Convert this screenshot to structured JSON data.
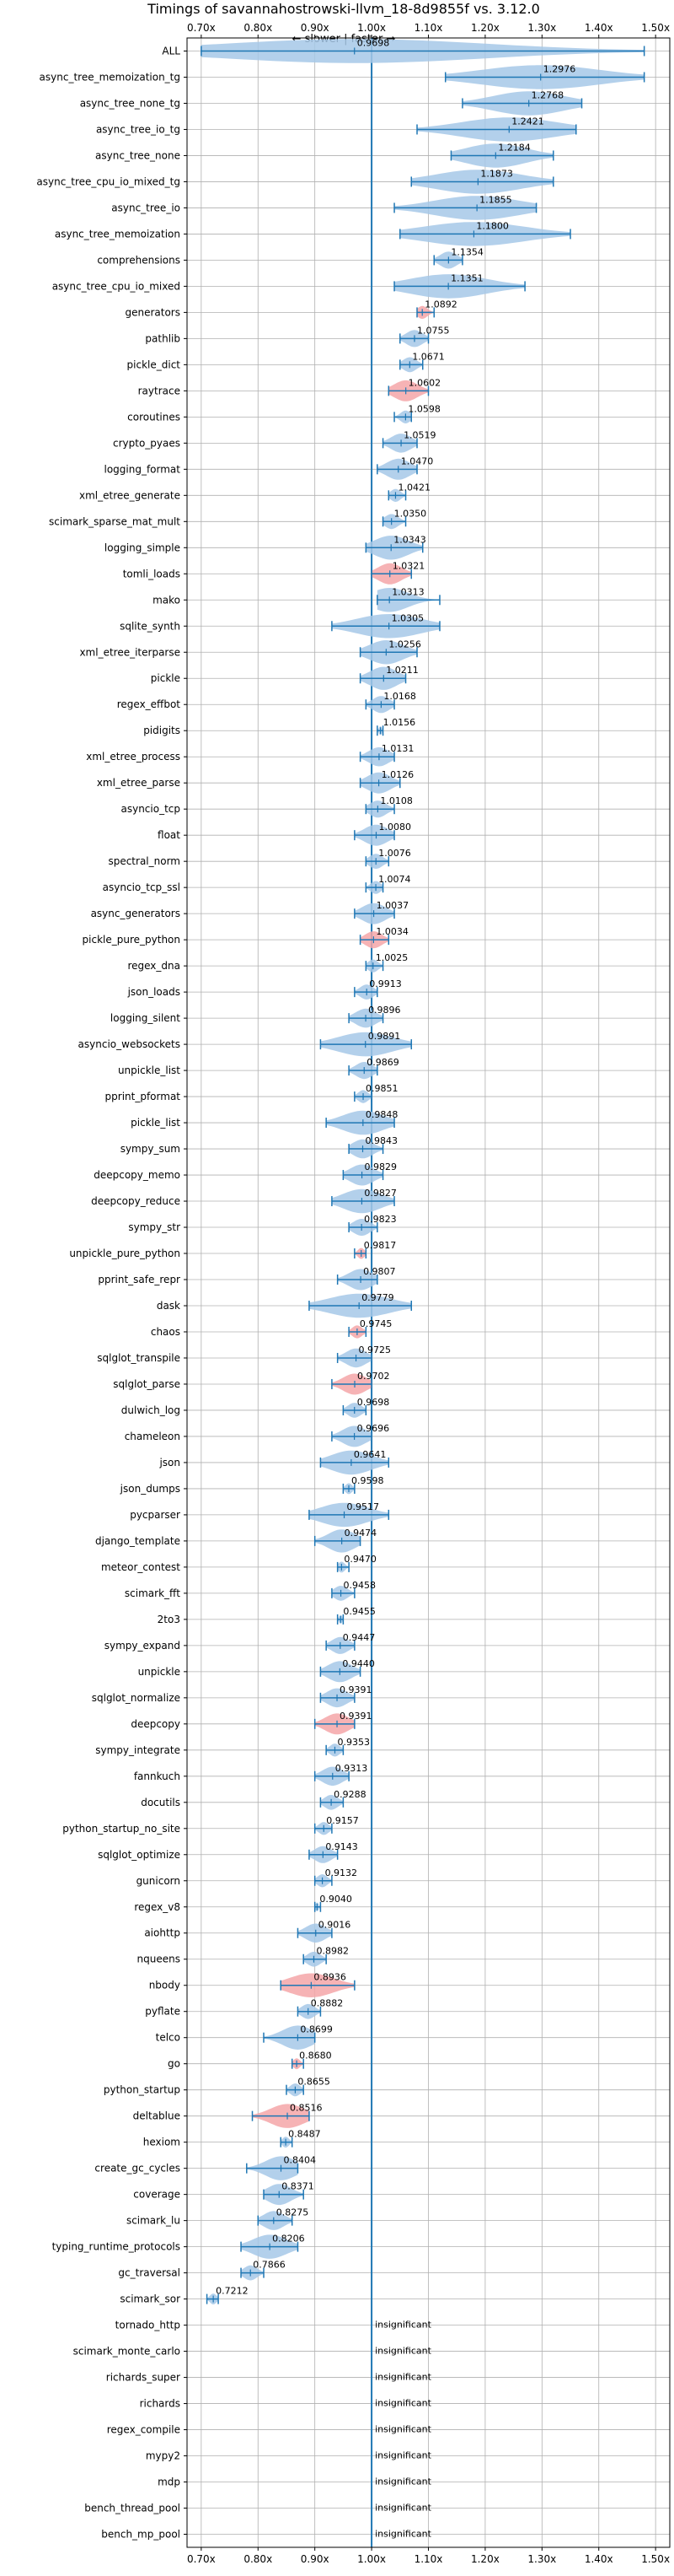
{
  "chart_data": {
    "type": "violin",
    "title": "Timings of savannahostrowski-llvm_18-8d9855f vs. 3.12.0",
    "direction_label": "← slower | faster →",
    "xlim": [
      0.675,
      1.525
    ],
    "x_ticks": [
      0.7,
      0.8,
      0.9,
      1.0,
      1.1,
      1.2,
      1.3,
      1.4,
      1.5
    ],
    "x_tick_labels": [
      "0.70x",
      "0.80x",
      "0.90x",
      "1.00x",
      "1.10x",
      "1.20x",
      "1.30x",
      "1.40x",
      "1.50x"
    ],
    "reference_line": 1.0,
    "grid": true,
    "colors": {
      "faster": "#a6c8e8",
      "slower": "#f4a6a8",
      "line": "#1f77b4"
    },
    "insignificant_label": "insignificant",
    "benchmarks": [
      {
        "name": "ALL",
        "value": 0.9698,
        "label": "0.9698",
        "lo": 0.7,
        "hi": 1.48,
        "color": "faster"
      },
      {
        "name": "async_tree_memoization_tg",
        "value": 1.2976,
        "label": "1.2976",
        "lo": 1.13,
        "hi": 1.48,
        "color": "faster"
      },
      {
        "name": "async_tree_none_tg",
        "value": 1.2768,
        "label": "1.2768",
        "lo": 1.16,
        "hi": 1.37,
        "color": "faster"
      },
      {
        "name": "async_tree_io_tg",
        "value": 1.2421,
        "label": "1.2421",
        "lo": 1.08,
        "hi": 1.36,
        "color": "faster"
      },
      {
        "name": "async_tree_none",
        "value": 1.2184,
        "label": "1.2184",
        "lo": 1.14,
        "hi": 1.32,
        "color": "faster"
      },
      {
        "name": "async_tree_cpu_io_mixed_tg",
        "value": 1.1873,
        "label": "1.1873",
        "lo": 1.07,
        "hi": 1.32,
        "color": "faster"
      },
      {
        "name": "async_tree_io",
        "value": 1.1855,
        "label": "1.1855",
        "lo": 1.04,
        "hi": 1.29,
        "color": "faster"
      },
      {
        "name": "async_tree_memoization",
        "value": 1.18,
        "label": "1.1800",
        "lo": 1.05,
        "hi": 1.35,
        "color": "faster"
      },
      {
        "name": "comprehensions",
        "value": 1.1354,
        "label": "1.1354",
        "lo": 1.11,
        "hi": 1.16,
        "color": "faster"
      },
      {
        "name": "async_tree_cpu_io_mixed",
        "value": 1.1351,
        "label": "1.1351",
        "lo": 1.04,
        "hi": 1.27,
        "color": "faster"
      },
      {
        "name": "generators",
        "value": 1.0892,
        "label": "1.0892",
        "lo": 1.08,
        "hi": 1.11,
        "color": "slower"
      },
      {
        "name": "pathlib",
        "value": 1.0755,
        "label": "1.0755",
        "lo": 1.05,
        "hi": 1.1,
        "color": "faster"
      },
      {
        "name": "pickle_dict",
        "value": 1.0671,
        "label": "1.0671",
        "lo": 1.05,
        "hi": 1.09,
        "color": "faster"
      },
      {
        "name": "raytrace",
        "value": 1.0602,
        "label": "1.0602",
        "lo": 1.03,
        "hi": 1.1,
        "color": "slower"
      },
      {
        "name": "coroutines",
        "value": 1.0598,
        "label": "1.0598",
        "lo": 1.04,
        "hi": 1.07,
        "color": "faster"
      },
      {
        "name": "crypto_pyaes",
        "value": 1.0519,
        "label": "1.0519",
        "lo": 1.02,
        "hi": 1.08,
        "color": "faster"
      },
      {
        "name": "logging_format",
        "value": 1.047,
        "label": "1.0470",
        "lo": 1.01,
        "hi": 1.08,
        "color": "faster"
      },
      {
        "name": "xml_etree_generate",
        "value": 1.0421,
        "label": "1.0421",
        "lo": 1.03,
        "hi": 1.06,
        "color": "faster"
      },
      {
        "name": "scimark_sparse_mat_mult",
        "value": 1.035,
        "label": "1.0350",
        "lo": 1.02,
        "hi": 1.06,
        "color": "faster"
      },
      {
        "name": "logging_simple",
        "value": 1.0343,
        "label": "1.0343",
        "lo": 0.99,
        "hi": 1.09,
        "color": "faster"
      },
      {
        "name": "tomli_loads",
        "value": 1.0321,
        "label": "1.0321",
        "lo": 1.0,
        "hi": 1.07,
        "color": "slower"
      },
      {
        "name": "mako",
        "value": 1.0313,
        "label": "1.0313",
        "lo": 1.01,
        "hi": 1.12,
        "color": "faster"
      },
      {
        "name": "sqlite_synth",
        "value": 1.0305,
        "label": "1.0305",
        "lo": 0.93,
        "hi": 1.12,
        "color": "faster"
      },
      {
        "name": "xml_etree_iterparse",
        "value": 1.0256,
        "label": "1.0256",
        "lo": 0.98,
        "hi": 1.08,
        "color": "faster"
      },
      {
        "name": "pickle",
        "value": 1.0211,
        "label": "1.0211",
        "lo": 0.98,
        "hi": 1.06,
        "color": "faster"
      },
      {
        "name": "regex_effbot",
        "value": 1.0168,
        "label": "1.0168",
        "lo": 0.99,
        "hi": 1.04,
        "color": "faster"
      },
      {
        "name": "pidigits",
        "value": 1.0156,
        "label": "1.0156",
        "lo": 1.01,
        "hi": 1.02,
        "color": "faster"
      },
      {
        "name": "xml_etree_process",
        "value": 1.0131,
        "label": "1.0131",
        "lo": 0.98,
        "hi": 1.04,
        "color": "faster"
      },
      {
        "name": "xml_etree_parse",
        "value": 1.0126,
        "label": "1.0126",
        "lo": 0.98,
        "hi": 1.05,
        "color": "faster"
      },
      {
        "name": "asyncio_tcp",
        "value": 1.0108,
        "label": "1.0108",
        "lo": 0.99,
        "hi": 1.04,
        "color": "faster"
      },
      {
        "name": "float",
        "value": 1.008,
        "label": "1.0080",
        "lo": 0.97,
        "hi": 1.04,
        "color": "faster"
      },
      {
        "name": "spectral_norm",
        "value": 1.0076,
        "label": "1.0076",
        "lo": 0.99,
        "hi": 1.03,
        "color": "faster"
      },
      {
        "name": "asyncio_tcp_ssl",
        "value": 1.0074,
        "label": "1.0074",
        "lo": 0.99,
        "hi": 1.02,
        "color": "faster"
      },
      {
        "name": "async_generators",
        "value": 1.0037,
        "label": "1.0037",
        "lo": 0.97,
        "hi": 1.04,
        "color": "faster"
      },
      {
        "name": "pickle_pure_python",
        "value": 1.0034,
        "label": "1.0034",
        "lo": 0.98,
        "hi": 1.03,
        "color": "slower"
      },
      {
        "name": "regex_dna",
        "value": 1.0025,
        "label": "1.0025",
        "lo": 0.99,
        "hi": 1.02,
        "color": "faster"
      },
      {
        "name": "json_loads",
        "value": 0.9913,
        "label": "0.9913",
        "lo": 0.97,
        "hi": 1.01,
        "color": "faster"
      },
      {
        "name": "logging_silent",
        "value": 0.9896,
        "label": "0.9896",
        "lo": 0.96,
        "hi": 1.02,
        "color": "faster"
      },
      {
        "name": "asyncio_websockets",
        "value": 0.9891,
        "label": "0.9891",
        "lo": 0.91,
        "hi": 1.07,
        "color": "faster"
      },
      {
        "name": "unpickle_list",
        "value": 0.9869,
        "label": "0.9869",
        "lo": 0.96,
        "hi": 1.01,
        "color": "faster"
      },
      {
        "name": "pprint_pformat",
        "value": 0.9851,
        "label": "0.9851",
        "lo": 0.97,
        "hi": 1.0,
        "color": "faster"
      },
      {
        "name": "pickle_list",
        "value": 0.9848,
        "label": "0.9848",
        "lo": 0.92,
        "hi": 1.04,
        "color": "faster"
      },
      {
        "name": "sympy_sum",
        "value": 0.9843,
        "label": "0.9843",
        "lo": 0.96,
        "hi": 1.02,
        "color": "faster"
      },
      {
        "name": "deepcopy_memo",
        "value": 0.9829,
        "label": "0.9829",
        "lo": 0.95,
        "hi": 1.02,
        "color": "faster"
      },
      {
        "name": "deepcopy_reduce",
        "value": 0.9827,
        "label": "0.9827",
        "lo": 0.93,
        "hi": 1.04,
        "color": "faster"
      },
      {
        "name": "sympy_str",
        "value": 0.9823,
        "label": "0.9823",
        "lo": 0.96,
        "hi": 1.01,
        "color": "faster"
      },
      {
        "name": "unpickle_pure_python",
        "value": 0.9817,
        "label": "0.9817",
        "lo": 0.97,
        "hi": 0.99,
        "color": "slower"
      },
      {
        "name": "pprint_safe_repr",
        "value": 0.9807,
        "label": "0.9807",
        "lo": 0.94,
        "hi": 1.01,
        "color": "faster"
      },
      {
        "name": "dask",
        "value": 0.9779,
        "label": "0.9779",
        "lo": 0.89,
        "hi": 1.07,
        "color": "faster"
      },
      {
        "name": "chaos",
        "value": 0.9745,
        "label": "0.9745",
        "lo": 0.96,
        "hi": 0.99,
        "color": "slower"
      },
      {
        "name": "sqlglot_transpile",
        "value": 0.9725,
        "label": "0.9725",
        "lo": 0.94,
        "hi": 1.0,
        "color": "faster"
      },
      {
        "name": "sqlglot_parse",
        "value": 0.9702,
        "label": "0.9702",
        "lo": 0.93,
        "hi": 1.0,
        "color": "slower"
      },
      {
        "name": "dulwich_log",
        "value": 0.9698,
        "label": "0.9698",
        "lo": 0.95,
        "hi": 0.99,
        "color": "faster"
      },
      {
        "name": "chameleon",
        "value": 0.9696,
        "label": "0.9696",
        "lo": 0.93,
        "hi": 1.0,
        "color": "faster"
      },
      {
        "name": "json",
        "value": 0.9641,
        "label": "0.9641",
        "lo": 0.91,
        "hi": 1.03,
        "color": "faster"
      },
      {
        "name": "json_dumps",
        "value": 0.9598,
        "label": "0.9598",
        "lo": 0.95,
        "hi": 0.97,
        "color": "faster"
      },
      {
        "name": "pycparser",
        "value": 0.9517,
        "label": "0.9517",
        "lo": 0.89,
        "hi": 1.03,
        "color": "faster"
      },
      {
        "name": "django_template",
        "value": 0.9474,
        "label": "0.9474",
        "lo": 0.9,
        "hi": 0.98,
        "color": "faster"
      },
      {
        "name": "meteor_contest",
        "value": 0.947,
        "label": "0.9470",
        "lo": 0.94,
        "hi": 0.96,
        "color": "faster"
      },
      {
        "name": "scimark_fft",
        "value": 0.9458,
        "label": "0.9458",
        "lo": 0.93,
        "hi": 0.97,
        "color": "faster"
      },
      {
        "name": "2to3",
        "value": 0.9455,
        "label": "0.9455",
        "lo": 0.94,
        "hi": 0.95,
        "color": "faster"
      },
      {
        "name": "sympy_expand",
        "value": 0.9447,
        "label": "0.9447",
        "lo": 0.92,
        "hi": 0.97,
        "color": "faster"
      },
      {
        "name": "unpickle",
        "value": 0.944,
        "label": "0.9440",
        "lo": 0.91,
        "hi": 0.98,
        "color": "faster"
      },
      {
        "name": "sqlglot_normalize",
        "value": 0.9391,
        "label": "0.9391",
        "lo": 0.91,
        "hi": 0.97,
        "color": "faster"
      },
      {
        "name": "deepcopy",
        "value": 0.9391,
        "label": "0.9391",
        "lo": 0.9,
        "hi": 0.97,
        "color": "slower"
      },
      {
        "name": "sympy_integrate",
        "value": 0.9353,
        "label": "0.9353",
        "lo": 0.92,
        "hi": 0.95,
        "color": "faster"
      },
      {
        "name": "fannkuch",
        "value": 0.9313,
        "label": "0.9313",
        "lo": 0.9,
        "hi": 0.96,
        "color": "faster"
      },
      {
        "name": "docutils",
        "value": 0.9288,
        "label": "0.9288",
        "lo": 0.91,
        "hi": 0.95,
        "color": "faster"
      },
      {
        "name": "python_startup_no_site",
        "value": 0.9157,
        "label": "0.9157",
        "lo": 0.9,
        "hi": 0.93,
        "color": "faster"
      },
      {
        "name": "sqlglot_optimize",
        "value": 0.9143,
        "label": "0.9143",
        "lo": 0.89,
        "hi": 0.94,
        "color": "faster"
      },
      {
        "name": "gunicorn",
        "value": 0.9132,
        "label": "0.9132",
        "lo": 0.9,
        "hi": 0.93,
        "color": "faster"
      },
      {
        "name": "regex_v8",
        "value": 0.904,
        "label": "0.9040",
        "lo": 0.9,
        "hi": 0.91,
        "color": "faster"
      },
      {
        "name": "aiohttp",
        "value": 0.9016,
        "label": "0.9016",
        "lo": 0.87,
        "hi": 0.93,
        "color": "faster"
      },
      {
        "name": "nqueens",
        "value": 0.8982,
        "label": "0.8982",
        "lo": 0.88,
        "hi": 0.92,
        "color": "faster"
      },
      {
        "name": "nbody",
        "value": 0.8936,
        "label": "0.8936",
        "lo": 0.84,
        "hi": 0.97,
        "color": "slower"
      },
      {
        "name": "pyflate",
        "value": 0.8882,
        "label": "0.8882",
        "lo": 0.87,
        "hi": 0.91,
        "color": "faster"
      },
      {
        "name": "telco",
        "value": 0.8699,
        "label": "0.8699",
        "lo": 0.81,
        "hi": 0.9,
        "color": "faster"
      },
      {
        "name": "go",
        "value": 0.868,
        "label": "0.8680",
        "lo": 0.86,
        "hi": 0.88,
        "color": "slower"
      },
      {
        "name": "python_startup",
        "value": 0.8655,
        "label": "0.8655",
        "lo": 0.85,
        "hi": 0.88,
        "color": "faster"
      },
      {
        "name": "deltablue",
        "value": 0.8516,
        "label": "0.8516",
        "lo": 0.79,
        "hi": 0.89,
        "color": "slower"
      },
      {
        "name": "hexiom",
        "value": 0.8487,
        "label": "0.8487",
        "lo": 0.84,
        "hi": 0.86,
        "color": "faster"
      },
      {
        "name": "create_gc_cycles",
        "value": 0.8404,
        "label": "0.8404",
        "lo": 0.78,
        "hi": 0.87,
        "color": "faster"
      },
      {
        "name": "coverage",
        "value": 0.8371,
        "label": "0.8371",
        "lo": 0.81,
        "hi": 0.88,
        "color": "faster"
      },
      {
        "name": "scimark_lu",
        "value": 0.8275,
        "label": "0.8275",
        "lo": 0.8,
        "hi": 0.86,
        "color": "faster"
      },
      {
        "name": "typing_runtime_protocols",
        "value": 0.8206,
        "label": "0.8206",
        "lo": 0.77,
        "hi": 0.87,
        "color": "faster"
      },
      {
        "name": "gc_traversal",
        "value": 0.7866,
        "label": "0.7866",
        "lo": 0.77,
        "hi": 0.81,
        "color": "faster"
      },
      {
        "name": "scimark_sor",
        "value": 0.7212,
        "label": "0.7212",
        "lo": 0.71,
        "hi": 0.73,
        "color": "faster"
      },
      {
        "name": "tornado_http",
        "value": null,
        "label": "insignificant"
      },
      {
        "name": "scimark_monte_carlo",
        "value": null,
        "label": "insignificant"
      },
      {
        "name": "richards_super",
        "value": null,
        "label": "insignificant"
      },
      {
        "name": "richards",
        "value": null,
        "label": "insignificant"
      },
      {
        "name": "regex_compile",
        "value": null,
        "label": "insignificant"
      },
      {
        "name": "mypy2",
        "value": null,
        "label": "insignificant"
      },
      {
        "name": "mdp",
        "value": null,
        "label": "insignificant"
      },
      {
        "name": "bench_thread_pool",
        "value": null,
        "label": "insignificant"
      },
      {
        "name": "bench_mp_pool",
        "value": null,
        "label": "insignificant"
      }
    ]
  }
}
